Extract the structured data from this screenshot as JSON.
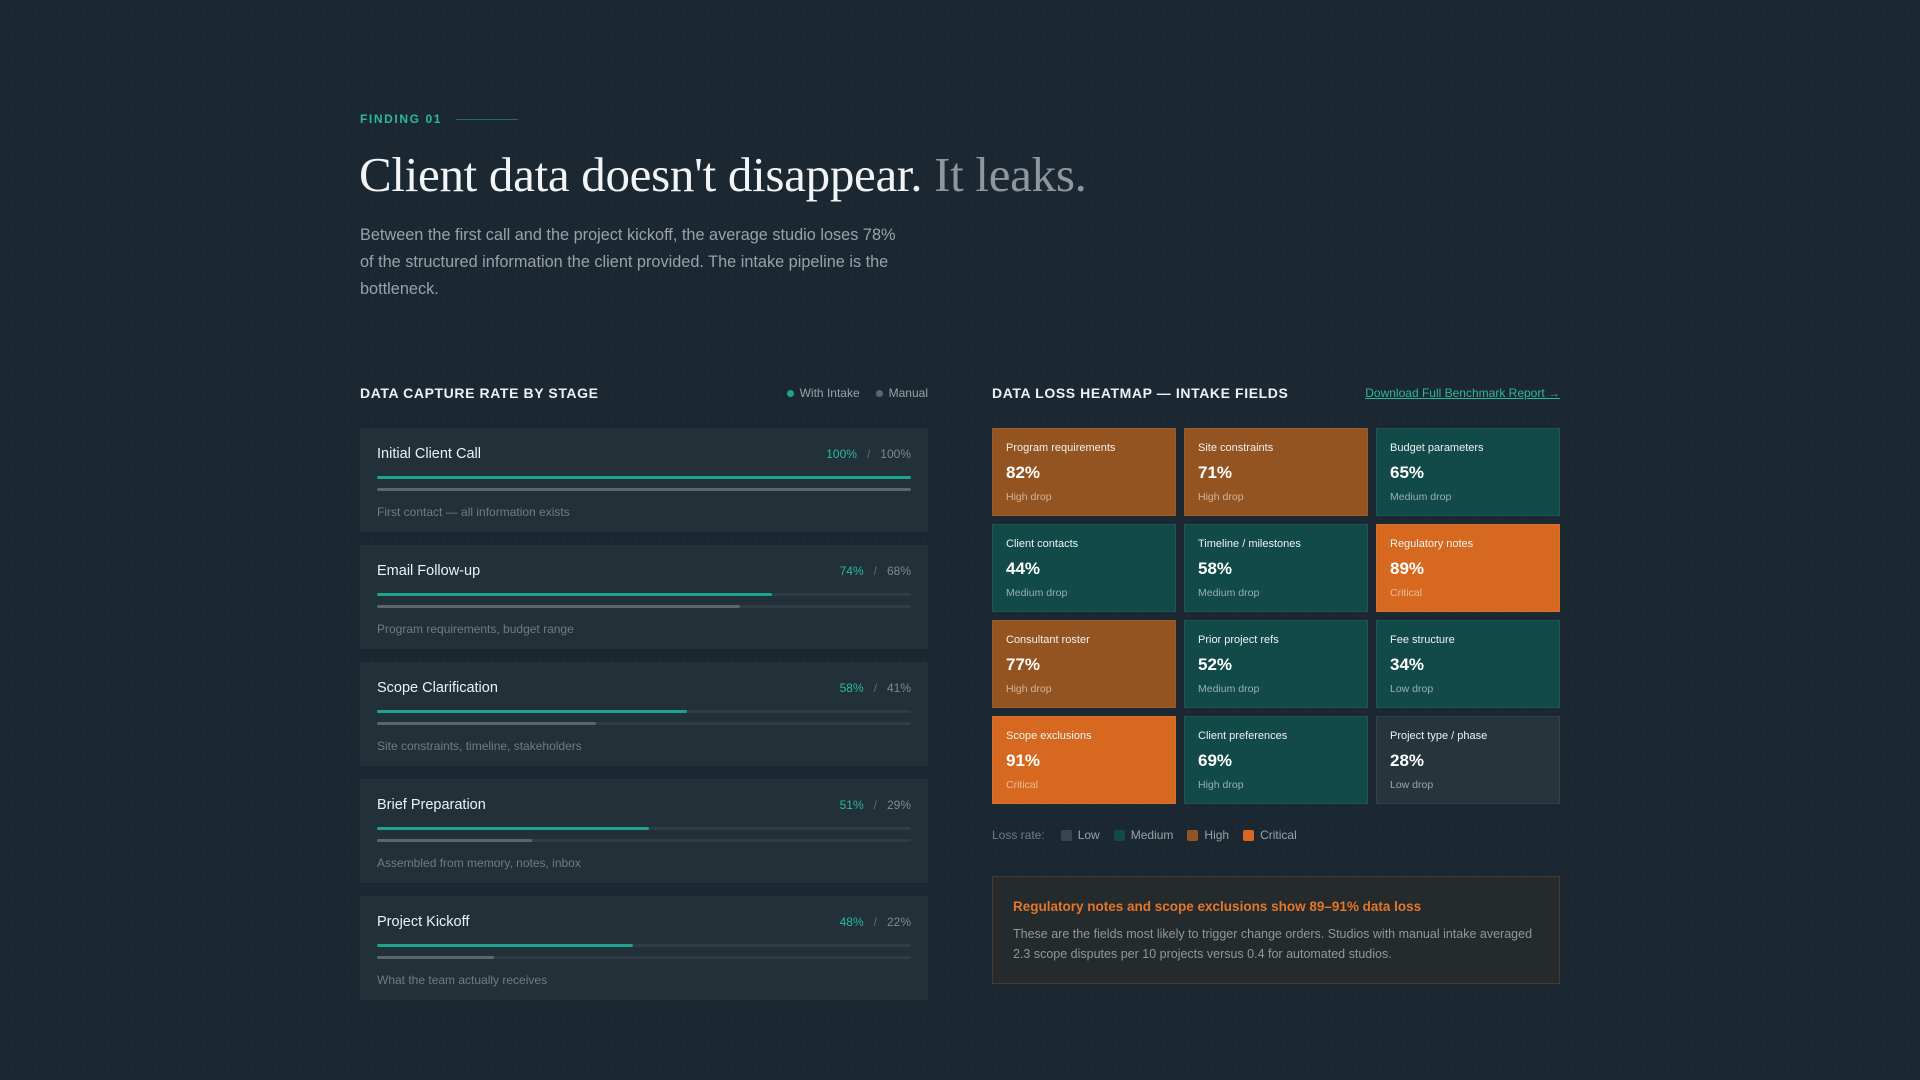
{
  "header": {
    "eyebrow": "FINDING 01",
    "headline_main": "Client data doesn't disappear.",
    "headline_muted": "It leaks.",
    "intro": "Between the first call and the project kickoff, the average studio loses 78% of the structured information the client provided. The intake pipeline is the bottleneck."
  },
  "capture": {
    "title": "DATA CAPTURE RATE BY STAGE",
    "legend": {
      "intake": "With Intake",
      "manual": "Manual"
    },
    "colors": {
      "intake": "#1fa391",
      "manual": "#5d666b"
    },
    "separator": "/",
    "stages": [
      {
        "name": "Initial Client Call",
        "intake_label": "100%",
        "manual_label": "100%",
        "intake": 100,
        "manual": 100,
        "desc": "First contact — all information exists"
      },
      {
        "name": "Email Follow-up",
        "intake_label": "74%",
        "manual_label": "68%",
        "intake": 74,
        "manual": 68,
        "desc": "Program requirements, budget range"
      },
      {
        "name": "Scope Clarification",
        "intake_label": "58%",
        "manual_label": "41%",
        "intake": 58,
        "manual": 41,
        "desc": "Site constraints, timeline, stakeholders"
      },
      {
        "name": "Brief Preparation",
        "intake_label": "51%",
        "manual_label": "29%",
        "intake": 51,
        "manual": 29,
        "desc": "Assembled from memory, notes, inbox"
      },
      {
        "name": "Project Kickoff",
        "intake_label": "48%",
        "manual_label": "22%",
        "intake": 48,
        "manual": 22,
        "desc": "What the team actually receives"
      }
    ]
  },
  "heatmap": {
    "title": "DATA LOSS HEATMAP — INTAKE FIELDS",
    "download_link": "Download Full Benchmark Report →",
    "cells": [
      {
        "label": "Program requirements",
        "value": "82%",
        "rating": "High drop",
        "level": "high"
      },
      {
        "label": "Site constraints",
        "value": "71%",
        "rating": "High drop",
        "level": "high"
      },
      {
        "label": "Budget parameters",
        "value": "65%",
        "rating": "Medium drop",
        "level": "medium"
      },
      {
        "label": "Client contacts",
        "value": "44%",
        "rating": "Medium drop",
        "level": "medium"
      },
      {
        "label": "Timeline / milestones",
        "value": "58%",
        "rating": "Medium drop",
        "level": "medium"
      },
      {
        "label": "Regulatory notes",
        "value": "89%",
        "rating": "Critical",
        "level": "critical"
      },
      {
        "label": "Consultant roster",
        "value": "77%",
        "rating": "High drop",
        "level": "high"
      },
      {
        "label": "Prior project refs",
        "value": "52%",
        "rating": "Medium drop",
        "level": "medium"
      },
      {
        "label": "Fee structure",
        "value": "34%",
        "rating": "Low drop",
        "level": "medium"
      },
      {
        "label": "Scope exclusions",
        "value": "91%",
        "rating": "Critical",
        "level": "critical"
      },
      {
        "label": "Client preferences",
        "value": "69%",
        "rating": "High drop",
        "level": "medium"
      },
      {
        "label": "Project type / phase",
        "value": "28%",
        "rating": "Low drop",
        "level": "low"
      }
    ],
    "legend": {
      "label": "Loss rate:",
      "items": [
        {
          "name": "Low",
          "color": "#3a464d"
        },
        {
          "name": "Medium",
          "color": "#124a4a"
        },
        {
          "name": "High",
          "color": "#935422"
        },
        {
          "name": "Critical",
          "color": "#d6691f"
        }
      ]
    }
  },
  "callout": {
    "title": "Regulatory notes and scope exclusions show 89–91% data loss",
    "body": "These are the fields most likely to trigger change orders. Studios with manual intake averaged 2.3 scope disputes per 10 projects versus 0.4 for automated studios."
  }
}
